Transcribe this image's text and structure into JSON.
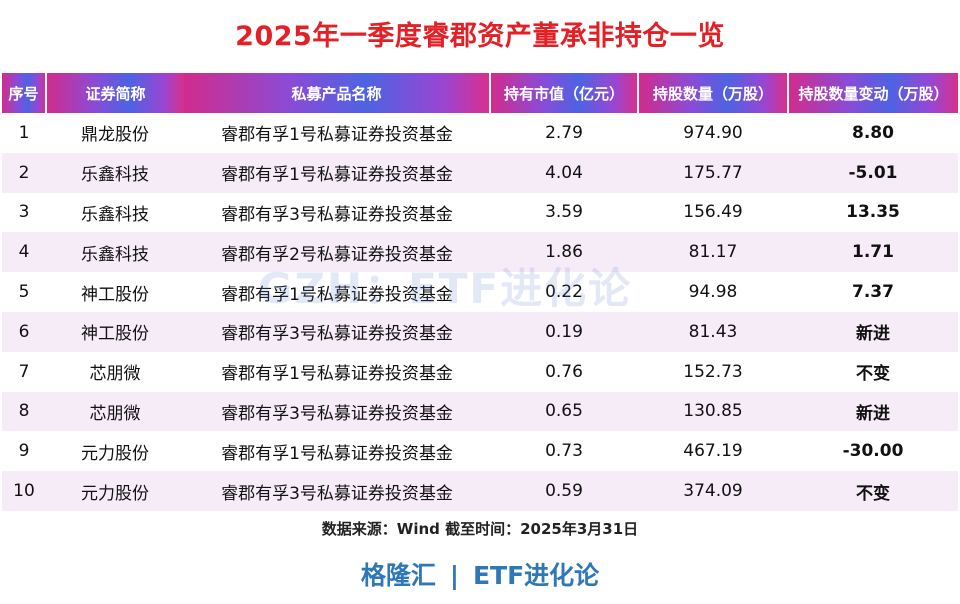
{
  "title": "2025年一季度睿郡资产董承非持仓一览",
  "table": {
    "headers": [
      "序号",
      "证券简称",
      "私募产品名称",
      "持有市值（亿元）",
      "持股数量（万股）",
      "持股数量变动（万股）"
    ],
    "rows": [
      {
        "no": "1",
        "stock": "鼎龙股份",
        "fund": "睿郡有孚1号私募证券投资基金",
        "value": "2.79",
        "shares": "974.90",
        "change": "8.80",
        "change_type": "pos"
      },
      {
        "no": "2",
        "stock": "乐鑫科技",
        "fund": "睿郡有孚1号私募证券投资基金",
        "value": "4.04",
        "shares": "175.77",
        "change": "-5.01",
        "change_type": "neg"
      },
      {
        "no": "3",
        "stock": "乐鑫科技",
        "fund": "睿郡有孚3号私募证券投资基金",
        "value": "3.59",
        "shares": "156.49",
        "change": "13.35",
        "change_type": "pos"
      },
      {
        "no": "4",
        "stock": "乐鑫科技",
        "fund": "睿郡有孚2号私募证券投资基金",
        "value": "1.86",
        "shares": "81.17",
        "change": "1.71",
        "change_type": "pos"
      },
      {
        "no": "5",
        "stock": "神工股份",
        "fund": "睿郡有孚1号私募证券投资基金",
        "value": "0.22",
        "shares": "94.98",
        "change": "7.37",
        "change_type": "pos"
      },
      {
        "no": "6",
        "stock": "神工股份",
        "fund": "睿郡有孚3号私募证券投资基金",
        "value": "0.19",
        "shares": "81.43",
        "change": "新进",
        "change_type": "new"
      },
      {
        "no": "7",
        "stock": "芯朋微",
        "fund": "睿郡有孚1号私募证券投资基金",
        "value": "0.76",
        "shares": "152.73",
        "change": "不变",
        "change_type": "flat"
      },
      {
        "no": "8",
        "stock": "芯朋微",
        "fund": "睿郡有孚3号私募证券投资基金",
        "value": "0.65",
        "shares": "130.85",
        "change": "新进",
        "change_type": "new"
      },
      {
        "no": "9",
        "stock": "元力股份",
        "fund": "睿郡有孚1号私募证券投资基金",
        "value": "0.73",
        "shares": "467.19",
        "change": "-30.00",
        "change_type": "neg"
      },
      {
        "no": "10",
        "stock": "元力股份",
        "fund": "睿郡有孚3号私募证券投资基金",
        "value": "0.59",
        "shares": "374.09",
        "change": "不变",
        "change_type": "flat"
      }
    ]
  },
  "watermark": "GZH：ETF进化论",
  "source": "数据来源：Wind 截至时间：2025年3月31日",
  "footer": {
    "left": "格隆汇",
    "separator": "|",
    "right": "ETF进化论"
  },
  "colors": {
    "title": "#e41f26",
    "positive": "#e41f26",
    "negative": "#20a33a",
    "footer": "#2f78b7",
    "header_gradient": [
      "#d12c8c",
      "#8a4bd6",
      "#4d63e2",
      "#9a45d2",
      "#d8308c"
    ],
    "stripe": "#f6ecf8"
  }
}
